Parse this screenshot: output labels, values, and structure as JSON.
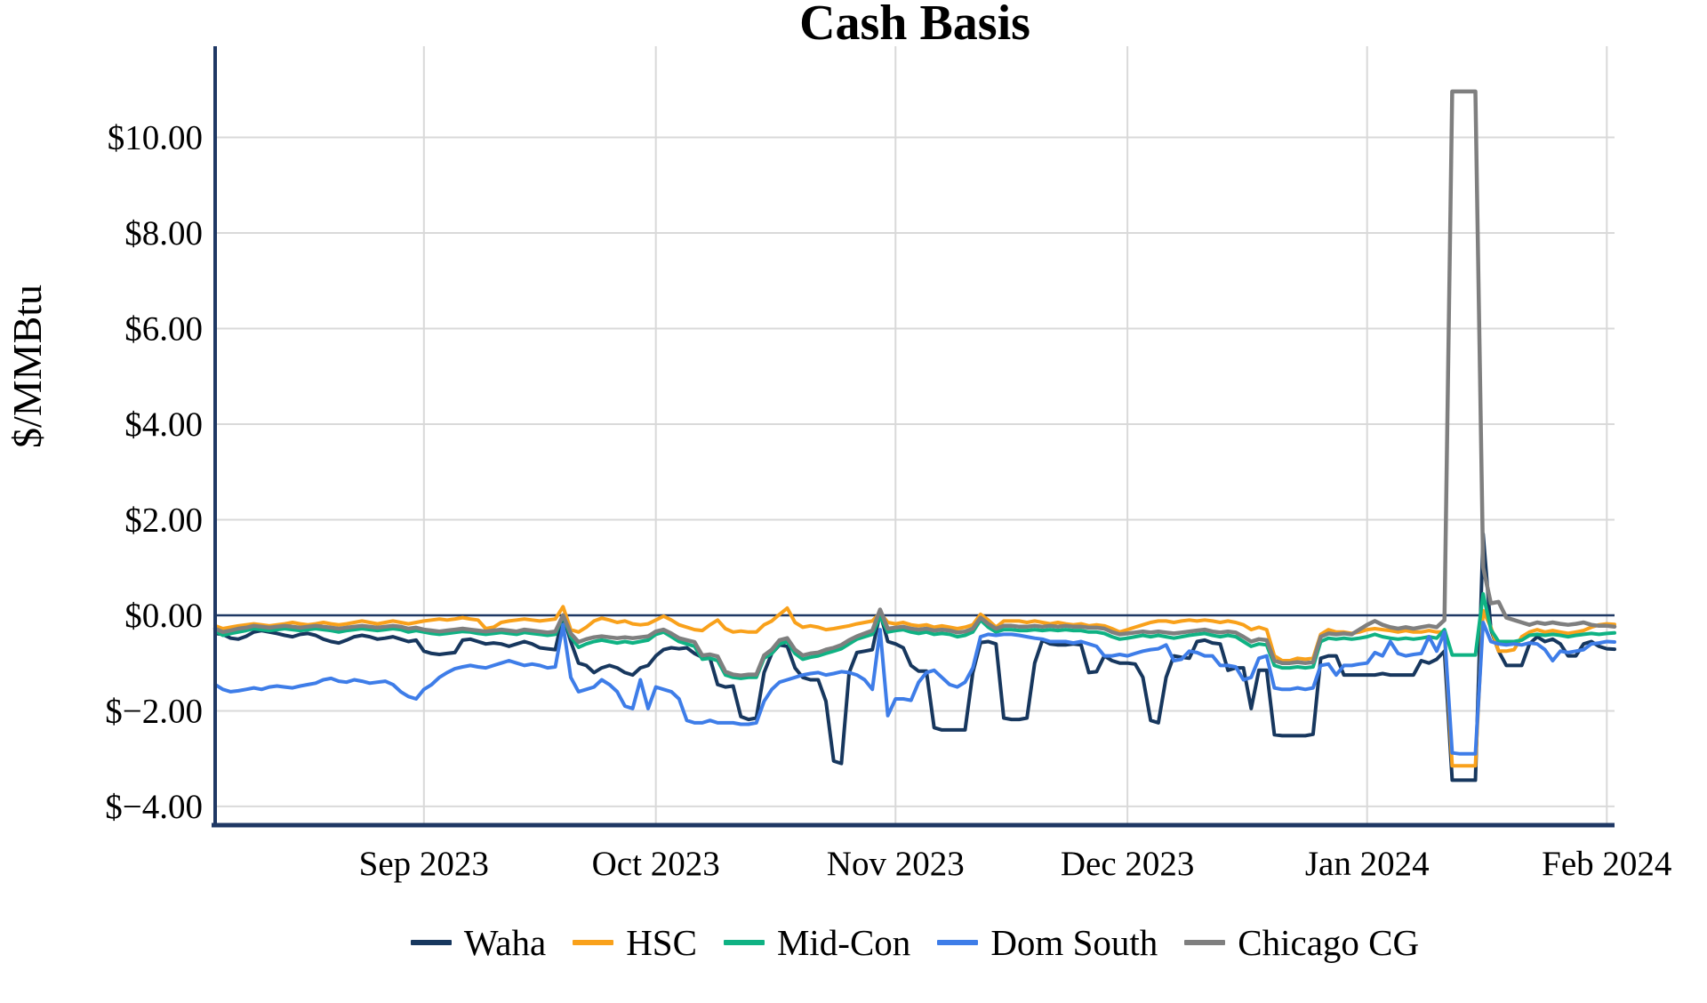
{
  "chart_data": {
    "type": "line",
    "title": "Cash Basis",
    "ylabel": "$/MMBtu",
    "xlabel": "",
    "grid": true,
    "legend_position": "bottom",
    "ylim": [
      -4.392,
      11.907
    ],
    "x_domain_days": [
      0,
      181
    ],
    "x_start_date": "2023-08-05",
    "y_ticks": [
      {
        "label": "$10.00",
        "value": 10
      },
      {
        "label": "$8.00",
        "value": 8
      },
      {
        "label": "$6.00",
        "value": 6
      },
      {
        "label": "$4.00",
        "value": 4
      },
      {
        "label": "$2.00",
        "value": 2
      },
      {
        "label": "$0.00",
        "value": 0
      },
      {
        "label": "$−2.00",
        "value": -2
      },
      {
        "label": "$−4.00",
        "value": -4
      }
    ],
    "x_ticks": [
      {
        "label": "Sep 2023",
        "day": 27
      },
      {
        "label": "Oct 2023",
        "day": 57
      },
      {
        "label": "Nov 2023",
        "day": 88
      },
      {
        "label": "Dec 2023",
        "day": 118
      },
      {
        "label": "Jan 2024",
        "day": 149
      },
      {
        "label": "Feb 2024",
        "day": 180
      }
    ],
    "series": [
      {
        "name": "Waha",
        "color": "#17375e",
        "values": [
          -0.38,
          -0.4,
          -0.48,
          -0.5,
          -0.44,
          -0.35,
          -0.32,
          -0.35,
          -0.38,
          -0.42,
          -0.45,
          -0.4,
          -0.38,
          -0.42,
          -0.5,
          -0.55,
          -0.58,
          -0.52,
          -0.45,
          -0.42,
          -0.45,
          -0.5,
          -0.48,
          -0.45,
          -0.5,
          -0.55,
          -0.52,
          -0.75,
          -0.8,
          -0.82,
          -0.8,
          -0.78,
          -0.52,
          -0.5,
          -0.55,
          -0.6,
          -0.58,
          -0.6,
          -0.65,
          -0.6,
          -0.55,
          -0.6,
          -0.68,
          -0.7,
          -0.72,
          0.0,
          -0.55,
          -1.0,
          -1.05,
          -1.2,
          -1.1,
          -1.05,
          -1.1,
          -1.2,
          -1.25,
          -1.1,
          -1.05,
          -0.85,
          -0.72,
          -0.68,
          -0.7,
          -0.68,
          -0.8,
          -0.88,
          -0.9,
          -1.45,
          -1.5,
          -1.48,
          -2.12,
          -2.18,
          -2.15,
          -1.2,
          -0.8,
          -0.62,
          -0.65,
          -1.1,
          -1.3,
          -1.35,
          -1.35,
          -1.8,
          -3.05,
          -3.1,
          -1.2,
          -0.78,
          -0.75,
          -0.72,
          0.05,
          -0.55,
          -0.6,
          -0.68,
          -1.05,
          -1.17,
          -1.17,
          -2.35,
          -2.4,
          -2.4,
          -2.4,
          -2.4,
          -1.2,
          -0.57,
          -0.55,
          -0.6,
          -2.15,
          -2.18,
          -2.18,
          -2.15,
          -1.0,
          -0.52,
          -0.6,
          -0.62,
          -0.62,
          -0.6,
          -0.62,
          -1.2,
          -1.18,
          -0.85,
          -0.95,
          -1.0,
          -1.0,
          -1.02,
          -1.3,
          -2.2,
          -2.25,
          -1.3,
          -0.85,
          -0.88,
          -0.9,
          -0.55,
          -0.52,
          -0.58,
          -0.6,
          -1.15,
          -1.1,
          -1.1,
          -1.95,
          -1.15,
          -1.15,
          -2.5,
          -2.52,
          -2.52,
          -2.52,
          -2.52,
          -2.49,
          -0.9,
          -0.85,
          -0.85,
          -1.25,
          -1.25,
          -1.25,
          -1.25,
          -1.25,
          -1.22,
          -1.25,
          -1.25,
          -1.25,
          -1.25,
          -0.95,
          -1.0,
          -0.92,
          -0.75,
          -3.45,
          -3.45,
          -3.45,
          -3.45,
          1.7,
          -0.3,
          -0.75,
          -1.05,
          -1.05,
          -1.05,
          -0.6,
          -0.45,
          -0.55,
          -0.5,
          -0.6,
          -0.85,
          -0.85,
          -0.6,
          -0.55,
          -0.65,
          -0.7,
          -0.71
        ]
      },
      {
        "name": "HSC",
        "color": "#f9a11b",
        "values": [
          -0.22,
          -0.28,
          -0.25,
          -0.22,
          -0.2,
          -0.18,
          -0.2,
          -0.22,
          -0.2,
          -0.18,
          -0.15,
          -0.18,
          -0.2,
          -0.18,
          -0.15,
          -0.18,
          -0.2,
          -0.18,
          -0.15,
          -0.12,
          -0.15,
          -0.18,
          -0.15,
          -0.12,
          -0.15,
          -0.18,
          -0.15,
          -0.12,
          -0.1,
          -0.08,
          -0.1,
          -0.08,
          -0.05,
          -0.08,
          -0.1,
          -0.28,
          -0.25,
          -0.15,
          -0.12,
          -0.1,
          -0.08,
          -0.1,
          -0.12,
          -0.1,
          -0.08,
          0.18,
          -0.3,
          -0.35,
          -0.25,
          -0.12,
          -0.06,
          -0.1,
          -0.15,
          -0.12,
          -0.18,
          -0.2,
          -0.18,
          -0.1,
          -0.02,
          -0.1,
          -0.2,
          -0.25,
          -0.3,
          -0.32,
          -0.2,
          -0.1,
          -0.28,
          -0.35,
          -0.33,
          -0.35,
          -0.35,
          -0.2,
          -0.12,
          0.02,
          0.15,
          -0.15,
          -0.25,
          -0.22,
          -0.25,
          -0.3,
          -0.28,
          -0.25,
          -0.22,
          -0.18,
          -0.15,
          -0.12,
          0.05,
          -0.15,
          -0.18,
          -0.15,
          -0.2,
          -0.22,
          -0.2,
          -0.25,
          -0.22,
          -0.25,
          -0.28,
          -0.25,
          -0.2,
          0.02,
          -0.1,
          -0.25,
          -0.12,
          -0.12,
          -0.12,
          -0.15,
          -0.12,
          -0.15,
          -0.18,
          -0.15,
          -0.18,
          -0.2,
          -0.18,
          -0.22,
          -0.2,
          -0.22,
          -0.28,
          -0.35,
          -0.3,
          -0.25,
          -0.2,
          -0.15,
          -0.12,
          -0.12,
          -0.15,
          -0.12,
          -0.1,
          -0.12,
          -0.1,
          -0.12,
          -0.15,
          -0.12,
          -0.15,
          -0.2,
          -0.3,
          -0.25,
          -0.3,
          -0.85,
          -0.95,
          -0.95,
          -0.9,
          -0.92,
          -0.9,
          -0.4,
          -0.3,
          -0.35,
          -0.35,
          -0.38,
          -0.35,
          -0.3,
          -0.28,
          -0.3,
          -0.32,
          -0.35,
          -0.32,
          -0.35,
          -0.35,
          -0.32,
          -0.35,
          -0.35,
          -3.15,
          -3.15,
          -3.15,
          -3.15,
          0.1,
          -0.25,
          -0.75,
          -0.75,
          -0.72,
          -0.45,
          -0.35,
          -0.3,
          -0.35,
          -0.32,
          -0.35,
          -0.38,
          -0.35,
          -0.32,
          -0.25,
          -0.2,
          -0.18,
          -0.19
        ]
      },
      {
        "name": "Mid-Con",
        "color": "#0fb283",
        "values": [
          -0.33,
          -0.42,
          -0.38,
          -0.35,
          -0.32,
          -0.28,
          -0.3,
          -0.32,
          -0.3,
          -0.28,
          -0.3,
          -0.32,
          -0.3,
          -0.28,
          -0.3,
          -0.32,
          -0.35,
          -0.32,
          -0.3,
          -0.28,
          -0.3,
          -0.32,
          -0.3,
          -0.28,
          -0.3,
          -0.35,
          -0.32,
          -0.35,
          -0.38,
          -0.4,
          -0.38,
          -0.36,
          -0.34,
          -0.35,
          -0.38,
          -0.4,
          -0.38,
          -0.36,
          -0.38,
          -0.4,
          -0.36,
          -0.38,
          -0.4,
          -0.42,
          -0.4,
          -0.02,
          -0.45,
          -0.67,
          -0.6,
          -0.55,
          -0.52,
          -0.55,
          -0.58,
          -0.55,
          -0.58,
          -0.55,
          -0.52,
          -0.4,
          -0.35,
          -0.45,
          -0.55,
          -0.6,
          -0.65,
          -0.92,
          -0.9,
          -0.95,
          -1.25,
          -1.3,
          -1.32,
          -1.3,
          -1.3,
          -0.9,
          -0.8,
          -0.6,
          -0.55,
          -0.8,
          -0.92,
          -0.88,
          -0.85,
          -0.8,
          -0.75,
          -0.7,
          -0.6,
          -0.5,
          -0.45,
          -0.4,
          -0.02,
          -0.35,
          -0.32,
          -0.3,
          -0.35,
          -0.38,
          -0.35,
          -0.4,
          -0.38,
          -0.4,
          -0.45,
          -0.42,
          -0.35,
          -0.1,
          -0.25,
          -0.35,
          -0.3,
          -0.3,
          -0.32,
          -0.32,
          -0.3,
          -0.32,
          -0.3,
          -0.32,
          -0.3,
          -0.32,
          -0.32,
          -0.35,
          -0.35,
          -0.38,
          -0.45,
          -0.5,
          -0.48,
          -0.45,
          -0.42,
          -0.45,
          -0.42,
          -0.45,
          -0.48,
          -0.45,
          -0.42,
          -0.4,
          -0.38,
          -0.42,
          -0.45,
          -0.42,
          -0.45,
          -0.55,
          -0.65,
          -0.6,
          -0.62,
          -1.05,
          -1.1,
          -1.1,
          -1.08,
          -1.1,
          -1.08,
          -0.55,
          -0.48,
          -0.5,
          -0.48,
          -0.5,
          -0.48,
          -0.45,
          -0.4,
          -0.45,
          -0.48,
          -0.5,
          -0.48,
          -0.5,
          -0.48,
          -0.45,
          -0.48,
          -0.3,
          -0.83,
          -0.83,
          -0.83,
          -0.83,
          0.45,
          -0.3,
          -0.55,
          -0.55,
          -0.55,
          -0.52,
          -0.42,
          -0.4,
          -0.42,
          -0.4,
          -0.42,
          -0.45,
          -0.42,
          -0.4,
          -0.38,
          -0.4,
          -0.38,
          -0.37
        ]
      },
      {
        "name": "Dom South",
        "color": "#3e7de8",
        "values": [
          -1.45,
          -1.55,
          -1.6,
          -1.58,
          -1.55,
          -1.52,
          -1.55,
          -1.5,
          -1.48,
          -1.5,
          -1.52,
          -1.48,
          -1.45,
          -1.42,
          -1.35,
          -1.32,
          -1.38,
          -1.4,
          -1.35,
          -1.38,
          -1.42,
          -1.4,
          -1.38,
          -1.45,
          -1.6,
          -1.7,
          -1.75,
          -1.55,
          -1.45,
          -1.3,
          -1.2,
          -1.12,
          -1.08,
          -1.05,
          -1.08,
          -1.1,
          -1.05,
          -1.0,
          -0.95,
          -1.0,
          -1.05,
          -1.02,
          -1.05,
          -1.1,
          -1.08,
          -0.2,
          -1.3,
          -1.6,
          -1.55,
          -1.5,
          -1.35,
          -1.45,
          -1.6,
          -1.9,
          -1.95,
          -1.35,
          -1.95,
          -1.5,
          -1.55,
          -1.6,
          -1.75,
          -2.2,
          -2.25,
          -2.25,
          -2.2,
          -2.25,
          -2.25,
          -2.25,
          -2.28,
          -2.28,
          -2.25,
          -1.8,
          -1.55,
          -1.4,
          -1.35,
          -1.3,
          -1.25,
          -1.22,
          -1.2,
          -1.25,
          -1.22,
          -1.18,
          -1.2,
          -1.25,
          -1.35,
          -1.55,
          -0.3,
          -2.1,
          -1.75,
          -1.75,
          -1.78,
          -1.4,
          -1.2,
          -1.15,
          -1.3,
          -1.45,
          -1.5,
          -1.4,
          -1.1,
          -0.45,
          -0.4,
          -0.42,
          -0.4,
          -0.4,
          -0.42,
          -0.45,
          -0.48,
          -0.5,
          -0.55,
          -0.55,
          -0.55,
          -0.58,
          -0.55,
          -0.6,
          -0.65,
          -0.85,
          -0.85,
          -0.82,
          -0.85,
          -0.8,
          -0.75,
          -0.72,
          -0.7,
          -0.62,
          -0.95,
          -0.92,
          -0.75,
          -0.78,
          -0.85,
          -0.85,
          -1.05,
          -1.05,
          -1.08,
          -1.35,
          -1.3,
          -0.9,
          -0.85,
          -1.52,
          -1.55,
          -1.55,
          -1.52,
          -1.55,
          -1.52,
          -1.05,
          -1.02,
          -1.25,
          -1.05,
          -1.05,
          -1.02,
          -1.0,
          -0.78,
          -0.85,
          -0.55,
          -0.8,
          -0.85,
          -0.82,
          -0.8,
          -0.45,
          -0.75,
          -0.35,
          -2.88,
          -2.9,
          -2.9,
          -2.9,
          -0.15,
          -0.55,
          -0.6,
          -0.62,
          -0.6,
          -0.62,
          -0.58,
          -0.6,
          -0.72,
          -0.95,
          -0.75,
          -0.78,
          -0.75,
          -0.72,
          -0.6,
          -0.58,
          -0.55,
          -0.56
        ]
      },
      {
        "name": "Chicago CG",
        "color": "#7f7f7f",
        "values": [
          -0.28,
          -0.35,
          -0.32,
          -0.28,
          -0.26,
          -0.22,
          -0.24,
          -0.26,
          -0.24,
          -0.22,
          -0.24,
          -0.26,
          -0.24,
          -0.22,
          -0.24,
          -0.26,
          -0.28,
          -0.26,
          -0.24,
          -0.22,
          -0.24,
          -0.26,
          -0.24,
          -0.22,
          -0.24,
          -0.28,
          -0.26,
          -0.3,
          -0.32,
          -0.34,
          -0.32,
          -0.3,
          -0.28,
          -0.3,
          -0.32,
          -0.34,
          -0.32,
          -0.3,
          -0.32,
          -0.34,
          -0.3,
          -0.32,
          -0.34,
          -0.36,
          -0.34,
          0.0,
          -0.38,
          -0.56,
          -0.5,
          -0.46,
          -0.44,
          -0.46,
          -0.48,
          -0.46,
          -0.48,
          -0.46,
          -0.44,
          -0.34,
          -0.3,
          -0.38,
          -0.48,
          -0.52,
          -0.56,
          -0.84,
          -0.82,
          -0.86,
          -1.18,
          -1.24,
          -1.26,
          -1.24,
          -1.24,
          -0.84,
          -0.72,
          -0.52,
          -0.48,
          -0.72,
          -0.84,
          -0.8,
          -0.78,
          -0.72,
          -0.68,
          -0.62,
          -0.52,
          -0.44,
          -0.38,
          -0.32,
          0.12,
          -0.28,
          -0.26,
          -0.24,
          -0.28,
          -0.3,
          -0.28,
          -0.32,
          -0.3,
          -0.32,
          -0.36,
          -0.34,
          -0.28,
          -0.05,
          -0.18,
          -0.28,
          -0.22,
          -0.22,
          -0.24,
          -0.24,
          -0.22,
          -0.24,
          -0.22,
          -0.24,
          -0.22,
          -0.24,
          -0.24,
          -0.26,
          -0.26,
          -0.28,
          -0.35,
          -0.4,
          -0.38,
          -0.36,
          -0.34,
          -0.36,
          -0.34,
          -0.36,
          -0.38,
          -0.36,
          -0.34,
          -0.32,
          -0.3,
          -0.34,
          -0.36,
          -0.34,
          -0.36,
          -0.45,
          -0.55,
          -0.5,
          -0.52,
          -0.95,
          -1.0,
          -1.0,
          -0.98,
          -1.0,
          -0.98,
          -0.45,
          -0.38,
          -0.4,
          -0.38,
          -0.4,
          -0.3,
          -0.2,
          -0.12,
          -0.2,
          -0.25,
          -0.28,
          -0.25,
          -0.28,
          -0.25,
          -0.22,
          -0.25,
          -0.1,
          10.96,
          10.96,
          10.96,
          10.96,
          1.0,
          0.25,
          0.28,
          -0.05,
          -0.1,
          -0.15,
          -0.2,
          -0.15,
          -0.18,
          -0.15,
          -0.18,
          -0.2,
          -0.18,
          -0.15,
          -0.2,
          -0.22,
          -0.22,
          -0.24
        ]
      }
    ]
  },
  "colors": {
    "axis": "#1f3864",
    "zero_line": "#1f3864",
    "gridline": "#d9d9d9",
    "background": "#ffffff",
    "text": "#000000"
  }
}
